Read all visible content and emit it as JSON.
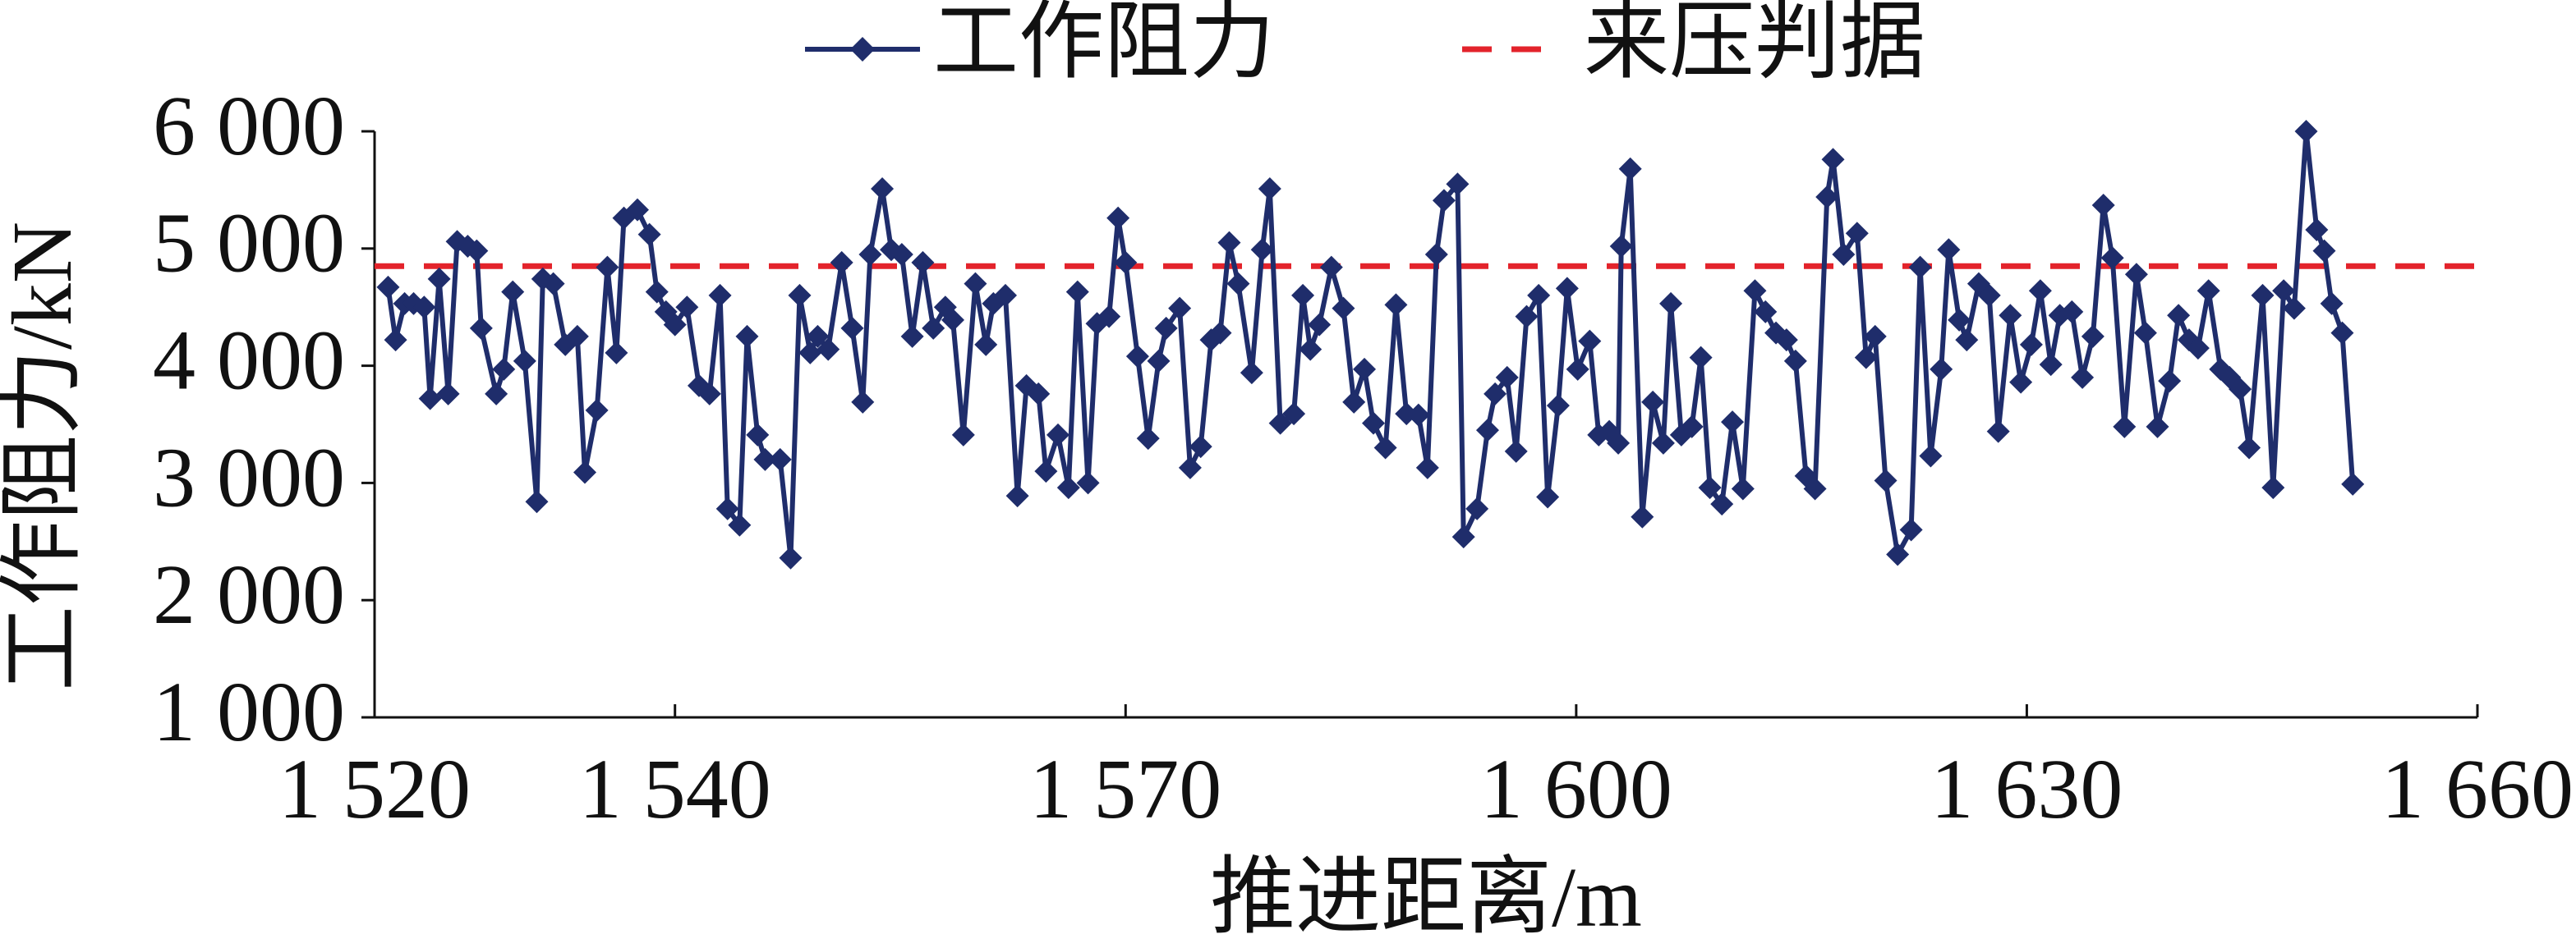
{
  "chart_data": {
    "type": "line",
    "xlabel": "推进距离/m",
    "ylabel": "工作阻力/kN",
    "xlim": [
      1520,
      1660
    ],
    "xticks": [
      {
        "value": 1520,
        "label": "1 520"
      },
      {
        "value": 1540,
        "label": "1 540"
      },
      {
        "value": 1570,
        "label": "1 570"
      },
      {
        "value": 1600,
        "label": "1 600"
      },
      {
        "value": 1630,
        "label": "1 630"
      },
      {
        "value": 1660,
        "label": "1 660"
      }
    ],
    "ylim": [
      1000,
      6000
    ],
    "yticks": [
      {
        "value": 1000,
        "label": "1 000"
      },
      {
        "value": 2000,
        "label": "2 000"
      },
      {
        "value": 3000,
        "label": "3 000"
      },
      {
        "value": 4000,
        "label": "4 000"
      },
      {
        "value": 5000,
        "label": "5 000"
      },
      {
        "value": 6000,
        "label": "6 000"
      }
    ],
    "legend": "top",
    "series": [
      {
        "name": "工作阻力",
        "color": "#1f2d6b",
        "x": [
          1520.9,
          1521.4,
          1522.0,
          1522.6,
          1523.3,
          1523.7,
          1524.3,
          1524.9,
          1525.5,
          1526.2,
          1526.8,
          1527.1,
          1528.1,
          1528.6,
          1529.2,
          1530.0,
          1530.8,
          1531.2,
          1531.9,
          1532.7,
          1533.5,
          1534.0,
          1534.8,
          1535.5,
          1536.1,
          1536.6,
          1537.5,
          1538.3,
          1538.8,
          1539.4,
          1540.0,
          1540.8,
          1541.6,
          1542.3,
          1543.0,
          1543.5,
          1544.3,
          1544.8,
          1545.5,
          1546.0,
          1547.0,
          1547.7,
          1548.3,
          1549.0,
          1549.5,
          1550.2,
          1551.1,
          1551.8,
          1552.5,
          1553.0,
          1553.8,
          1554.4,
          1555.1,
          1555.8,
          1556.5,
          1557.2,
          1558.0,
          1558.5,
          1559.2,
          1560.0,
          1560.7,
          1561.2,
          1562.0,
          1562.8,
          1563.4,
          1564.2,
          1564.7,
          1565.5,
          1566.2,
          1566.8,
          1567.5,
          1568.1,
          1568.9,
          1569.5,
          1570.0,
          1570.8,
          1571.5,
          1572.2,
          1572.7,
          1573.6,
          1574.3,
          1575.0,
          1575.7,
          1576.3,
          1576.9,
          1577.5,
          1578.4,
          1579.1,
          1579.6,
          1580.3,
          1581.2,
          1581.8,
          1582.3,
          1582.9,
          1583.7,
          1584.5,
          1585.2,
          1585.9,
          1586.5,
          1587.3,
          1588.0,
          1588.7,
          1589.5,
          1590.1,
          1590.7,
          1591.2,
          1592.1,
          1592.5,
          1593.4,
          1594.1,
          1594.6,
          1595.4,
          1596.0,
          1596.7,
          1597.5,
          1598.1,
          1598.8,
          1599.4,
          1600.1,
          1600.9,
          1601.5,
          1602.2,
          1602.8,
          1603.0,
          1603.6,
          1604.4,
          1605.1,
          1605.8,
          1606.3,
          1607.0,
          1607.7,
          1608.3,
          1608.9,
          1609.7,
          1610.4,
          1611.1,
          1611.9,
          1612.6,
          1613.3,
          1614.0,
          1614.6,
          1615.3,
          1615.9,
          1616.7,
          1617.1,
          1617.8,
          1618.7,
          1619.3,
          1619.9,
          1620.6,
          1621.4,
          1622.3,
          1622.9,
          1623.6,
          1624.3,
          1624.8,
          1625.5,
          1626.0,
          1626.8,
          1627.5,
          1628.1,
          1628.9,
          1629.6,
          1630.3,
          1630.9,
          1631.6,
          1632.2,
          1633.0,
          1633.7,
          1634.4,
          1635.1,
          1635.7,
          1636.5,
          1637.3,
          1637.9,
          1638.7,
          1639.5,
          1640.1,
          1640.8,
          1641.4,
          1642.1,
          1642.9,
          1643.5,
          1644.2,
          1644.8,
          1645.7,
          1646.4,
          1647.1,
          1647.8,
          1648.6,
          1649.3,
          1649.8,
          1650.3,
          1651.0,
          1651.7
        ],
        "values": [
          4670,
          4220,
          4530,
          4530,
          4500,
          3720,
          4740,
          3760,
          5060,
          5020,
          4980,
          4320,
          3760,
          3970,
          4630,
          4040,
          2840,
          4740,
          4700,
          4180,
          4250,
          3090,
          3620,
          4840,
          4110,
          5260,
          5330,
          5120,
          4630,
          4460,
          4350,
          4500,
          3830,
          3760,
          4600,
          2780,
          2640,
          4250,
          3410,
          3200,
          3200,
          2360,
          4600,
          4110,
          4250,
          4140,
          4880,
          4320,
          3690,
          4950,
          5510,
          4990,
          4950,
          4250,
          4880,
          4320,
          4500,
          4390,
          3410,
          4700,
          4180,
          4530,
          4600,
          2890,
          3830,
          3760,
          3100,
          3410,
          2960,
          4630,
          3000,
          4360,
          4420,
          5260,
          4880,
          4080,
          3380,
          4040,
          4320,
          4490,
          3130,
          3310,
          4220,
          4280,
          5050,
          4700,
          3940,
          4990,
          5510,
          3510,
          3590,
          4600,
          4140,
          4350,
          4840,
          4490,
          3690,
          3970,
          3510,
          3300,
          4520,
          3590,
          3580,
          3130,
          4950,
          5410,
          5550,
          2540,
          2780,
          3450,
          3760,
          3900,
          3270,
          4420,
          4600,
          2880,
          3660,
          4660,
          3970,
          4210,
          3410,
          3440,
          3340,
          5020,
          5680,
          2710,
          3690,
          3340,
          4530,
          3410,
          3480,
          4070,
          2960,
          2820,
          3520,
          2950,
          4640,
          4460,
          4280,
          4220,
          4040,
          3060,
          2950,
          5440,
          5760,
          4950,
          5130,
          4070,
          4250,
          3020,
          2390,
          2600,
          4840,
          3230,
          3970,
          4990,
          4390,
          4220,
          4700,
          4600,
          3440,
          4430,
          3860,
          4180,
          4640,
          4010,
          4430,
          4460,
          3900,
          4250,
          5370,
          4920,
          3480,
          4780,
          4280,
          3480,
          3870,
          4430,
          4220,
          4150,
          4640,
          3970,
          3900,
          3800,
          3300,
          4600,
          2960,
          4640,
          4490,
          6000,
          5160,
          4980,
          4530,
          4280,
          2990
        ]
      }
    ],
    "reference_line": {
      "name": "来压判据",
      "color": "#e3232b",
      "value": 4850
    }
  }
}
